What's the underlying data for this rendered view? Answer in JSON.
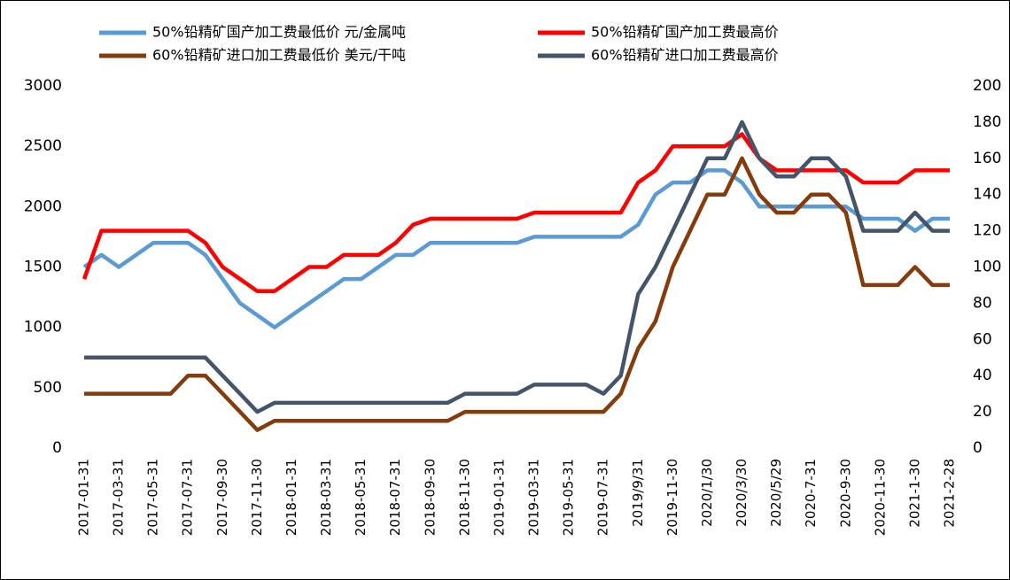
{
  "chart_data": {
    "type": "line",
    "categories": [
      "2017-01-31",
      null,
      "2017-03-31",
      null,
      "2017-05-31",
      null,
      "2017-07-31",
      null,
      "2017-09-30",
      null,
      "2017-11-30",
      null,
      "2018-01-31",
      null,
      "2018-03-31",
      null,
      "2018-05-31",
      null,
      "2018-07-31",
      null,
      "2018-09-30",
      null,
      "2018-11-30",
      null,
      "2019-01-31",
      null,
      "2019-03-31",
      null,
      "2019-05-31",
      null,
      "2019-07-31",
      null,
      "2019/9/31",
      null,
      "2019-11-30",
      null,
      "2020/1/30",
      null,
      "2020/3/30",
      null,
      "2020/5/29",
      null,
      "2020-7-31",
      null,
      "2020-9-30",
      null,
      "2020-11-30",
      null,
      "2021-1-30",
      null,
      "2021-2-28"
    ],
    "series": [
      {
        "name": "50%铅精矿国产加工费最低价 元/金属吨",
        "color": "#5b9bd5",
        "values": [
          1500,
          1600,
          1500,
          1600,
          1700,
          1700,
          1700,
          1600,
          1400,
          1200,
          1100,
          1000,
          1100,
          1200,
          1300,
          1400,
          1400,
          1500,
          1600,
          1600,
          1700,
          1700,
          1700,
          1700,
          1700,
          1700,
          1750,
          1750,
          1750,
          1750,
          1750,
          1750,
          1850,
          2100,
          2200,
          2200,
          2300,
          2300,
          2200,
          2000,
          2000,
          2000,
          2000,
          2000,
          2000,
          1900,
          1900,
          1900,
          1800,
          1900,
          1900
        ]
      },
      {
        "name": "50%铅精矿国产加工费最高价",
        "color": "#ff0000",
        "values": [
          1400,
          1800,
          1800,
          1800,
          1800,
          1800,
          1800,
          1700,
          1500,
          1400,
          1300,
          1300,
          1400,
          1500,
          1500,
          1600,
          1600,
          1600,
          1700,
          1850,
          1900,
          1900,
          1900,
          1900,
          1900,
          1900,
          1950,
          1950,
          1950,
          1950,
          1950,
          1950,
          2200,
          2300,
          2500,
          2500,
          2500,
          2500,
          2600,
          2400,
          2300,
          2300,
          2300,
          2300,
          2300,
          2200,
          2200,
          2200,
          2300,
          2300,
          2300
        ]
      },
      {
        "name": "60%铅精矿进口加工费最低价 美元/干吨",
        "color": "#843c0c",
        "axis": "y2",
        "values": [
          30,
          30,
          30,
          30,
          30,
          30,
          40,
          40,
          30,
          20,
          10,
          15,
          15,
          15,
          15,
          15,
          15,
          15,
          15,
          15,
          15,
          15,
          20,
          20,
          20,
          20,
          20,
          20,
          20,
          20,
          20,
          30,
          55,
          70,
          100,
          120,
          140,
          140,
          160,
          140,
          130,
          130,
          140,
          140,
          130,
          90,
          90,
          90,
          100,
          90,
          90
        ]
      },
      {
        "name": "60%铅精矿进口加工费最高价",
        "color": "#44546a",
        "axis": "y2",
        "values": [
          50,
          50,
          50,
          50,
          50,
          50,
          50,
          50,
          40,
          30,
          20,
          25,
          25,
          25,
          25,
          25,
          25,
          25,
          25,
          25,
          25,
          25,
          30,
          30,
          30,
          30,
          35,
          35,
          35,
          35,
          30,
          40,
          85,
          100,
          120,
          140,
          160,
          160,
          180,
          160,
          150,
          150,
          160,
          160,
          150,
          120,
          120,
          120,
          130,
          120,
          120
        ]
      }
    ],
    "ylim": [
      0,
      3000
    ],
    "yticks": [
      0,
      500,
      1000,
      1500,
      2000,
      2500,
      3000
    ],
    "y2lim": [
      0,
      200
    ],
    "y2ticks": [
      0,
      20,
      40,
      60,
      80,
      100,
      120,
      140,
      160,
      180,
      200
    ]
  }
}
